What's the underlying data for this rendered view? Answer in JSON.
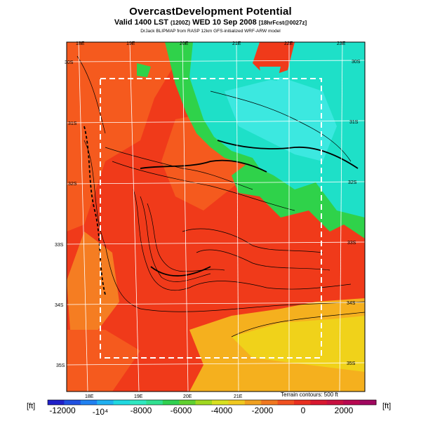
{
  "header": {
    "title": "OvercastDevelopment Potential",
    "subtitle_main": "Valid 1400 LST",
    "subtitle_small1": "(1200Z)",
    "subtitle_date": "WED 10 Sep 2008",
    "subtitle_small2": "[18hrFcst@0027z]",
    "credit": "DrJack BLIPMAP from RASP 12km GFS-initialized WRF-ARW model"
  },
  "map": {
    "lon_labels_top": [
      "18E",
      "19E",
      "20E",
      "21E",
      "22E",
      "23E"
    ],
    "lon_labels_bottom": [
      "18E",
      "19E",
      "20E",
      "21E"
    ],
    "lat_labels_left": [
      "30S",
      "31S",
      "32S",
      "33S",
      "34S",
      "35S"
    ],
    "lat_labels_right": [
      "30S",
      "31S",
      "32S",
      "33S",
      "34S",
      "35S"
    ],
    "terrain_note": "Terrain contours: 500 ft",
    "field_colors": {
      "red": "#f03a1a",
      "red_orange": "#f55a1e",
      "orange": "#f57d22",
      "yellow_orange": "#f5b01e",
      "yellow": "#f0d21a",
      "green": "#2fd24a",
      "cyan": "#1ee0c8",
      "light_cyan": "#3ce8e0"
    }
  },
  "colorbar": {
    "unit_left": "[ft]",
    "unit_right": "[ft]",
    "tick_labels": [
      "-12000",
      "-10⁴",
      "-8000",
      "-6000",
      "-4000",
      "-2000",
      "0",
      "2000"
    ],
    "colors": [
      "#2020c8",
      "#2050e0",
      "#2080f0",
      "#20b0f0",
      "#20d8e0",
      "#30e8c0",
      "#30e090",
      "#30d050",
      "#60d030",
      "#a0d820",
      "#d8e020",
      "#f0c820",
      "#f0a020",
      "#f07820",
      "#f05020",
      "#e83020",
      "#d81830",
      "#c81040",
      "#b80850",
      "#a00860"
    ]
  }
}
